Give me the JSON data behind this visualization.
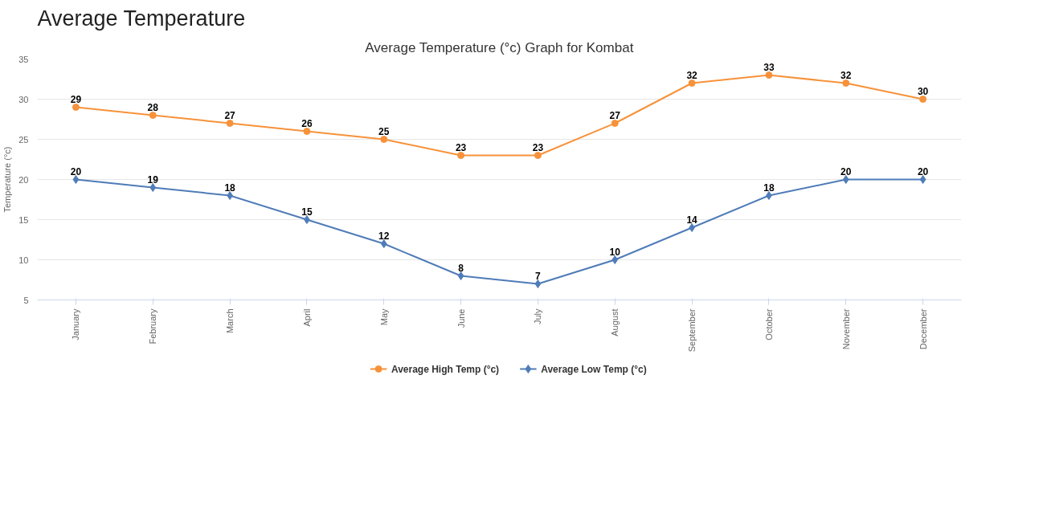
{
  "chart_data": {
    "type": "line",
    "title": "Average Temperature",
    "subtitle": "Average Temperature (°c) Graph for Kombat",
    "ylabel": "Temperature (°c)",
    "categories": [
      "January",
      "February",
      "March",
      "April",
      "May",
      "June",
      "July",
      "August",
      "September",
      "October",
      "November",
      "December"
    ],
    "series": [
      {
        "name": "Average High Temp (°c)",
        "color": "#f7923a",
        "marker": "circle",
        "values": [
          29,
          28,
          27,
          26,
          25,
          23,
          23,
          27,
          32,
          33,
          32,
          30
        ]
      },
      {
        "name": "Average Low Temp (°c)",
        "color": "#4f7cb8",
        "marker": "diamond",
        "values": [
          20,
          19,
          18,
          15,
          12,
          8,
          7,
          10,
          14,
          18,
          20,
          20
        ]
      }
    ],
    "ylim": [
      5,
      35
    ],
    "yticks": [
      5,
      10,
      15,
      20,
      25,
      30,
      35
    ],
    "grid": "y",
    "legend": "bottom",
    "data_labels": true,
    "line_style": "solid"
  }
}
